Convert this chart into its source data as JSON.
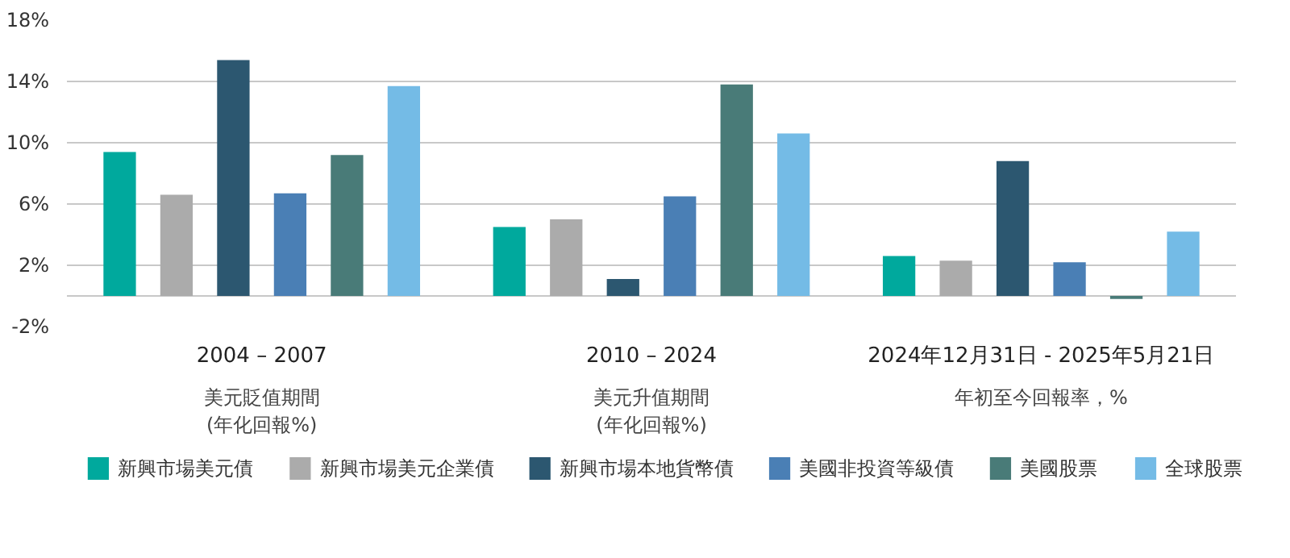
{
  "chart_data": {
    "type": "bar",
    "categories": [
      "2004 – 2007",
      "2010 – 2024",
      "2024年12月31日 - 2025年5月21日"
    ],
    "annotations": [
      "美元貶值期間\n(年化回報%)",
      "美元升值期間\n(年化回報%)",
      "年初至今回報率，%"
    ],
    "series": [
      {
        "name": "新興市場美元債",
        "color": "#00a99d",
        "values": [
          9.4,
          4.5,
          2.6
        ]
      },
      {
        "name": "新興市場美元企業債",
        "color": "#ababab",
        "values": [
          6.6,
          5.0,
          2.3
        ]
      },
      {
        "name": "新興市場本地貨幣債",
        "color": "#2c5770",
        "values": [
          15.4,
          1.1,
          8.8
        ]
      },
      {
        "name": "美國非投資等級債",
        "color": "#4a7fb5",
        "values": [
          6.7,
          6.5,
          2.2
        ]
      },
      {
        "name": "美國股票",
        "color": "#497b78",
        "values": [
          9.2,
          13.8,
          -0.2
        ]
      },
      {
        "name": "全球股票",
        "color": "#74bbe6",
        "values": [
          13.7,
          10.6,
          4.2
        ]
      }
    ],
    "ylim": [
      -2,
      18
    ],
    "yticks": [
      {
        "value": -2,
        "label": "-2%"
      },
      {
        "value": 0,
        "label": null
      },
      {
        "value": 2,
        "label": "2%"
      },
      {
        "value": 6,
        "label": "6%"
      },
      {
        "value": 10,
        "label": "10%"
      },
      {
        "value": 14,
        "label": "14%"
      },
      {
        "value": 18,
        "label": "18%"
      }
    ],
    "grid": "y",
    "legend": "bottom"
  }
}
